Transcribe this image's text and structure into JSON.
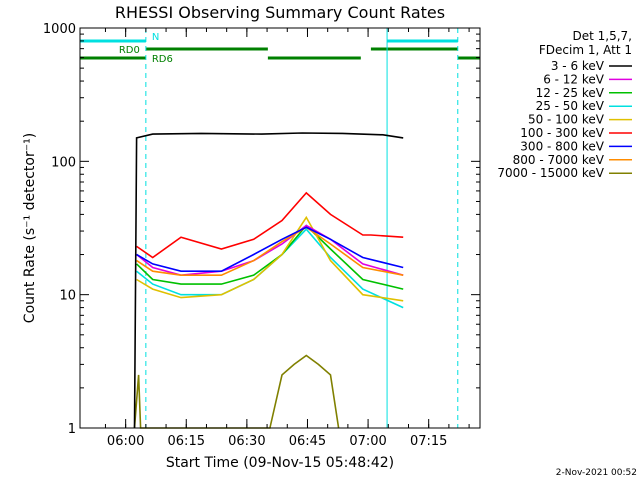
{
  "chart_data": {
    "type": "line",
    "title": "RHESSI Observing Summary Count Rates",
    "xlabel": "Start Time (09-Nov-15 05:48:42)",
    "ylabel": "Count Rate (s⁻¹ detector⁻¹)",
    "x_unit": "minutes",
    "xlim": [
      0,
      99
    ],
    "x_ticks": [
      {
        "t": 11.3,
        "label": "06:00"
      },
      {
        "t": 26.3,
        "label": "06:15"
      },
      {
        "t": 41.3,
        "label": "06:30"
      },
      {
        "t": 56.3,
        "label": "06:45"
      },
      {
        "t": 71.3,
        "label": "07:00"
      },
      {
        "t": 86.3,
        "label": "07:15"
      }
    ],
    "y_scale": "log",
    "ylim": [
      1,
      1000
    ],
    "y_ticks": [
      {
        "v": 1,
        "label": "1"
      },
      {
        "v": 10,
        "label": "10"
      },
      {
        "v": 100,
        "label": "100"
      },
      {
        "v": 1000,
        "label": "1000"
      }
    ],
    "legend_header": [
      "Det 1,5,7,",
      "FDecim 1, Att 1"
    ],
    "legend_position": "right",
    "series": [
      {
        "name": "3 - 6 keV",
        "color": "#000000",
        "x": [
          13.5,
          14,
          18,
          30,
          45,
          55,
          65,
          75,
          80
        ],
        "y": [
          1,
          150,
          160,
          162,
          160,
          163,
          162,
          158,
          150
        ]
      },
      {
        "name": "6 - 12 keV",
        "color": "#e000e0",
        "x": [
          14,
          18,
          25,
          35,
          43,
          50,
          56,
          62,
          70,
          80
        ],
        "y": [
          20,
          16,
          14,
          15,
          18,
          24,
          33,
          26,
          17,
          14
        ]
      },
      {
        "name": "12 - 25 keV",
        "color": "#00c000",
        "x": [
          14,
          18,
          25,
          35,
          43,
          50,
          56,
          62,
          70,
          80
        ],
        "y": [
          17,
          13,
          12,
          12,
          14,
          20,
          33,
          22,
          13,
          11
        ]
      },
      {
        "name": "25 - 50 keV",
        "color": "#00e0e0",
        "x": [
          14,
          18,
          25,
          35,
          43,
          50,
          56,
          62,
          70,
          80
        ],
        "y": [
          15,
          12,
          10,
          10,
          13,
          20,
          31,
          19,
          11,
          8
        ]
      },
      {
        "name": "50 - 100 keV",
        "color": "#e0c000",
        "x": [
          14,
          18,
          25,
          35,
          43,
          50,
          56,
          62,
          70,
          80
        ],
        "y": [
          13,
          11,
          9.5,
          10,
          13,
          20,
          38,
          18,
          10,
          9
        ]
      },
      {
        "name": "100 - 300 keV",
        "color": "#ff0000",
        "x": [
          14,
          18,
          25,
          35,
          43,
          50,
          56,
          62,
          70,
          72,
          80
        ],
        "y": [
          23,
          19,
          27,
          22,
          26,
          36,
          58,
          40,
          28,
          28,
          27
        ]
      },
      {
        "name": "300 - 800 keV",
        "color": "#0000ff",
        "x": [
          14,
          18,
          25,
          35,
          43,
          50,
          56,
          62,
          70,
          80
        ],
        "y": [
          20,
          17,
          15,
          15,
          20,
          26,
          32,
          26,
          19,
          16
        ]
      },
      {
        "name": "800 - 7000 keV",
        "color": "#ff8c00",
        "x": [
          14,
          18,
          25,
          35,
          43,
          50,
          56,
          62,
          70,
          80
        ],
        "y": [
          18,
          15,
          14,
          14,
          18,
          25,
          32,
          24,
          16,
          14
        ]
      },
      {
        "name": "7000 - 15000 keV",
        "color": "#808000",
        "x": [
          13.5,
          14.5,
          15,
          47,
          50,
          53,
          56,
          59,
          62,
          64
        ],
        "y": [
          1,
          2.5,
          1,
          1,
          2.5,
          3,
          3.5,
          3,
          2.5,
          1
        ]
      }
    ],
    "vertical_lines": [
      {
        "t": 0,
        "style": "solid",
        "color": "#00e0e0"
      },
      {
        "t": 16.3,
        "style": "dashed",
        "color": "#00e0e0"
      },
      {
        "t": 76,
        "style": "solid",
        "color": "#00e0e0"
      },
      {
        "t": 93.5,
        "style": "dashed",
        "color": "#00e0e0"
      }
    ],
    "flag_bars": [
      {
        "label": "N",
        "color": "#00e0e0",
        "row": 1,
        "segments": [
          [
            0,
            16.3
          ],
          [
            76,
            93.5
          ]
        ]
      },
      {
        "label": "RD0",
        "color": "#008000",
        "row": 2,
        "segments": [
          [
            16.3,
            46.5
          ],
          [
            72,
            93.5
          ]
        ]
      },
      {
        "label": "RD6",
        "color": "#008000",
        "row": 3,
        "segments": [
          [
            0,
            16.3
          ],
          [
            46.5,
            69.5
          ],
          [
            93.5,
            99
          ]
        ]
      }
    ]
  },
  "footer": {
    "date": "2-Nov-2021 00:52"
  }
}
